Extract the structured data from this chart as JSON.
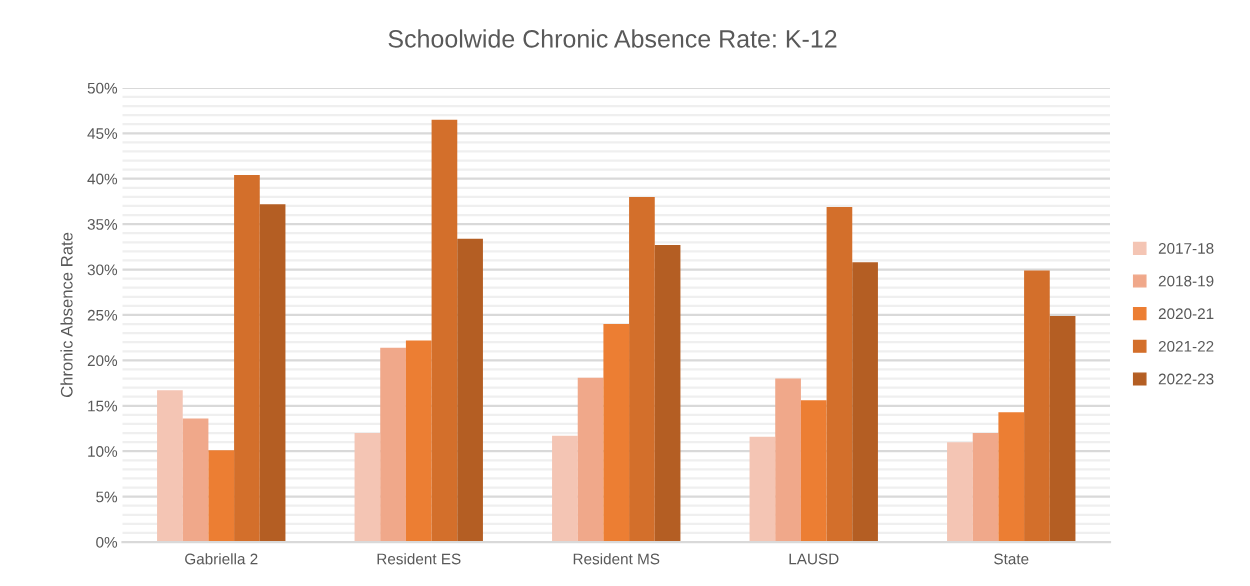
{
  "chart_data": {
    "type": "bar",
    "title": "Schoolwide Chronic Absence Rate: K-12",
    "ylabel": "Chronic Absence Rate",
    "categories": [
      "Gabriella 2",
      "Resident ES",
      "Resident MS",
      "LAUSD",
      "State"
    ],
    "series": [
      {
        "name": "2017-18",
        "color": "#f4c5b4",
        "values": [
          16.7,
          12.0,
          11.7,
          11.6,
          11.0
        ]
      },
      {
        "name": "2018-19",
        "color": "#f0a88a",
        "values": [
          13.6,
          21.4,
          18.1,
          18.0,
          12.0
        ]
      },
      {
        "name": "2020-21",
        "color": "#ec7e33",
        "values": [
          10.1,
          22.2,
          24.0,
          15.6,
          14.3
        ]
      },
      {
        "name": "2021-22",
        "color": "#d36f2b",
        "values": [
          40.4,
          46.5,
          38.0,
          36.9,
          29.9
        ]
      },
      {
        "name": "2022-23",
        "color": "#b45e23",
        "values": [
          37.2,
          33.4,
          32.7,
          30.8,
          24.9
        ]
      }
    ],
    "ylim": [
      0,
      50
    ],
    "yticks": [
      {
        "value": 0,
        "label": "0%"
      },
      {
        "value": 1,
        "label": null
      },
      {
        "value": 2,
        "label": null
      },
      {
        "value": 3,
        "label": null
      },
      {
        "value": 4,
        "label": null
      },
      {
        "value": 5,
        "label": "5%"
      },
      {
        "value": 6,
        "label": null
      },
      {
        "value": 7,
        "label": null
      },
      {
        "value": 8,
        "label": null
      },
      {
        "value": 9,
        "label": null
      },
      {
        "value": 10,
        "label": "10%"
      },
      {
        "value": 11,
        "label": null
      },
      {
        "value": 12,
        "label": null
      },
      {
        "value": 13,
        "label": null
      },
      {
        "value": 14,
        "label": null
      },
      {
        "value": 15,
        "label": "15%"
      },
      {
        "value": 16,
        "label": null
      },
      {
        "value": 17,
        "label": null
      },
      {
        "value": 18,
        "label": null
      },
      {
        "value": 19,
        "label": null
      },
      {
        "value": 20,
        "label": "20%"
      },
      {
        "value": 21,
        "label": null
      },
      {
        "value": 22,
        "label": null
      },
      {
        "value": 23,
        "label": null
      },
      {
        "value": 24,
        "label": null
      },
      {
        "value": 25,
        "label": "25%"
      },
      {
        "value": 26,
        "label": null
      },
      {
        "value": 27,
        "label": null
      },
      {
        "value": 28,
        "label": null
      },
      {
        "value": 29,
        "label": null
      },
      {
        "value": 30,
        "label": "30%"
      },
      {
        "value": 31,
        "label": null
      },
      {
        "value": 32,
        "label": null
      },
      {
        "value": 33,
        "label": null
      },
      {
        "value": 34,
        "label": null
      },
      {
        "value": 35,
        "label": "35%"
      },
      {
        "value": 36,
        "label": null
      },
      {
        "value": 37,
        "label": null
      },
      {
        "value": 38,
        "label": null
      },
      {
        "value": 39,
        "label": null
      },
      {
        "value": 40,
        "label": "40%"
      },
      {
        "value": 41,
        "label": null
      },
      {
        "value": 42,
        "label": null
      },
      {
        "value": 43,
        "label": null
      },
      {
        "value": 44,
        "label": null
      },
      {
        "value": 45,
        "label": "45%"
      },
      {
        "value": 46,
        "label": null
      },
      {
        "value": 47,
        "label": null
      },
      {
        "value": 48,
        "label": null
      },
      {
        "value": 49,
        "label": null
      },
      {
        "value": 50,
        "label": "50%"
      }
    ],
    "grid": "y",
    "legend": "right"
  }
}
